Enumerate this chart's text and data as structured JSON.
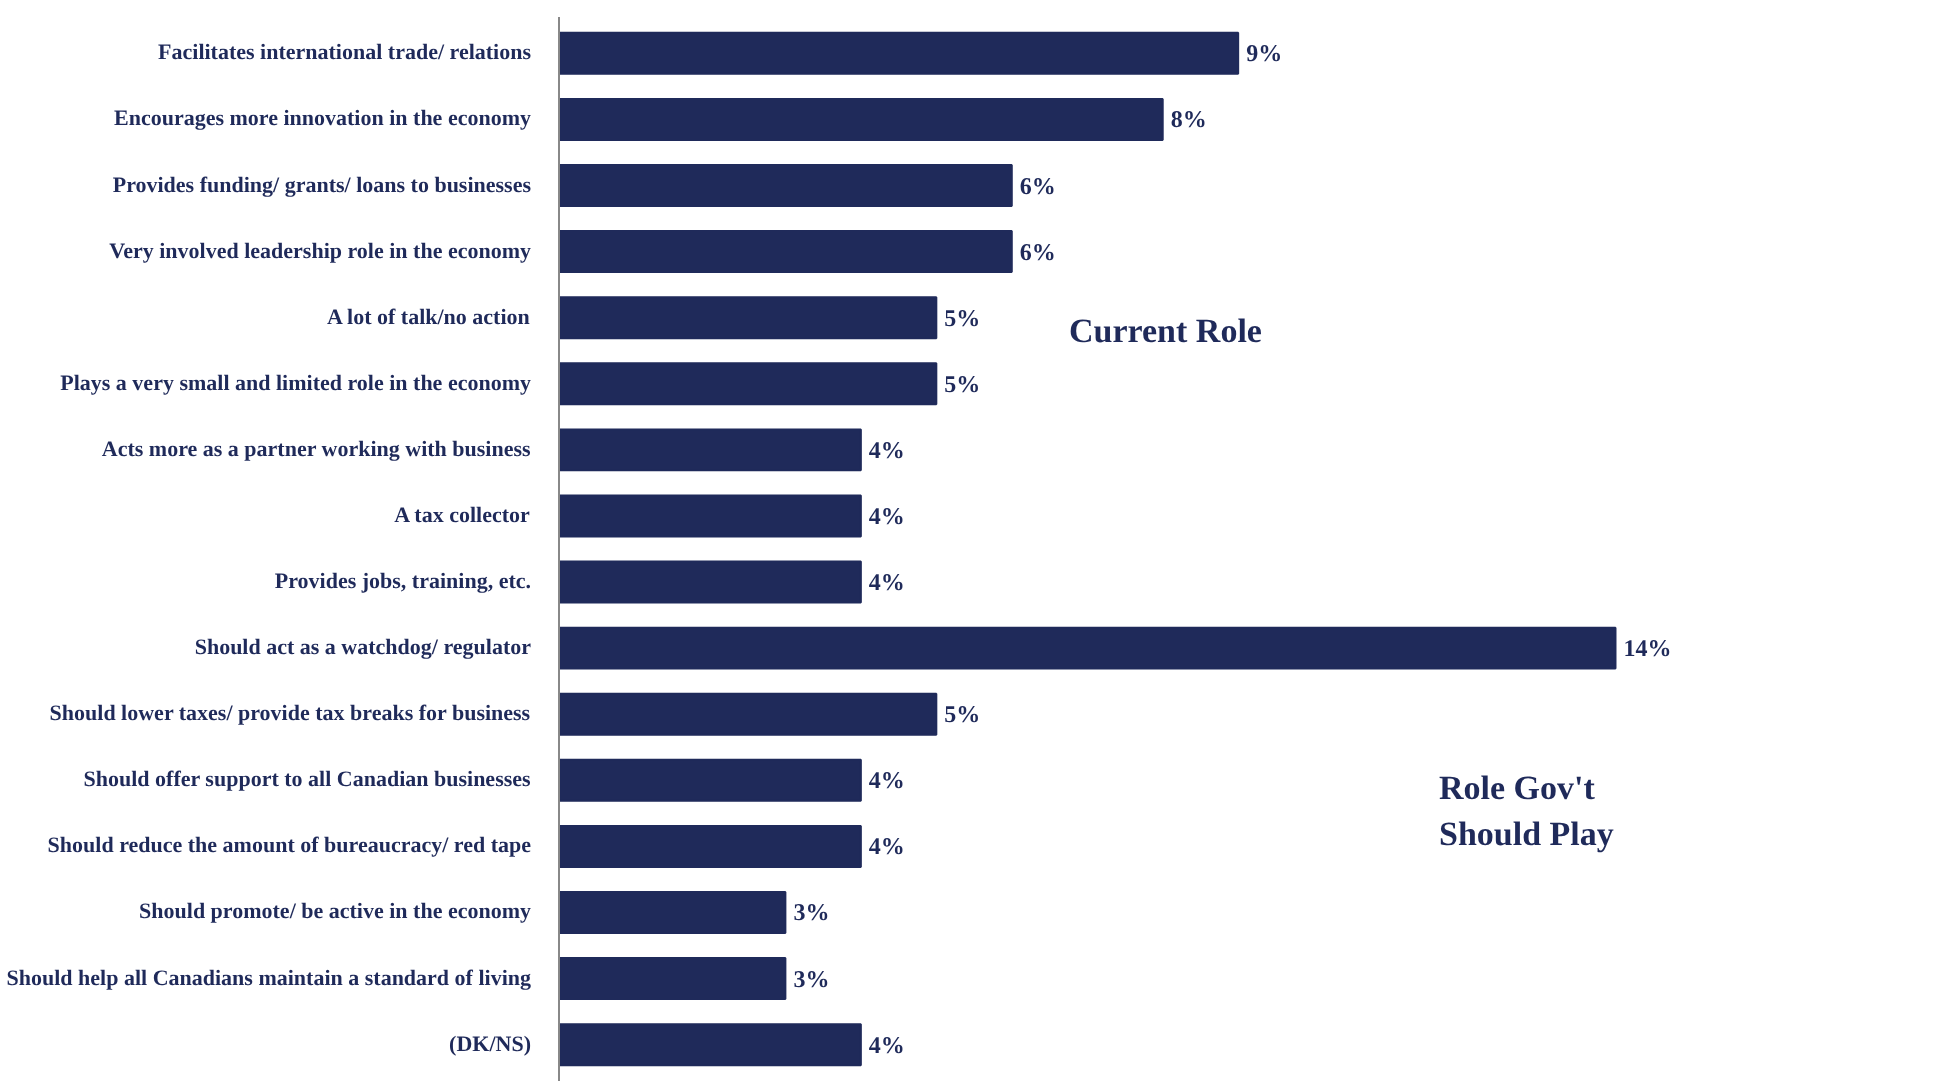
{
  "chart_data": {
    "type": "bar",
    "orientation": "horizontal",
    "categories": [
      "Facilitates international trade/ relations",
      "Encourages more innovation in the economy",
      "Provides funding/ grants/ loans to businesses",
      "Very involved leadership role in the economy",
      "A lot of talk/no action",
      "Plays a very small and limited role in the economy",
      "Acts more as a partner working with business",
      "A tax collector",
      "Provides jobs, training, etc.",
      "Should act as a watchdog/ regulator",
      "Should lower taxes/ provide tax breaks for business",
      "Should offer support to all Canadian businesses",
      "Should reduce the amount of bureaucracy/ red tape",
      "Should promote/ be active in the economy",
      "Should help all Canadians maintain a standard of living",
      "(DK/NS)"
    ],
    "values": [
      9,
      8,
      6,
      6,
      5,
      5,
      4,
      4,
      4,
      14,
      5,
      4,
      4,
      3,
      3,
      4
    ],
    "value_labels": [
      "9%",
      "8%",
      "6%",
      "6%",
      "5%",
      "5%",
      "4%",
      "4%",
      "4%",
      "14%",
      "5%",
      "4%",
      "4%",
      "3%",
      "3%",
      "4%"
    ],
    "color": "#1f2a5a",
    "tick_labels": "y",
    "grid": false,
    "annotations": [
      "Current Role",
      "Role Gov't\nShould Play"
    ]
  }
}
